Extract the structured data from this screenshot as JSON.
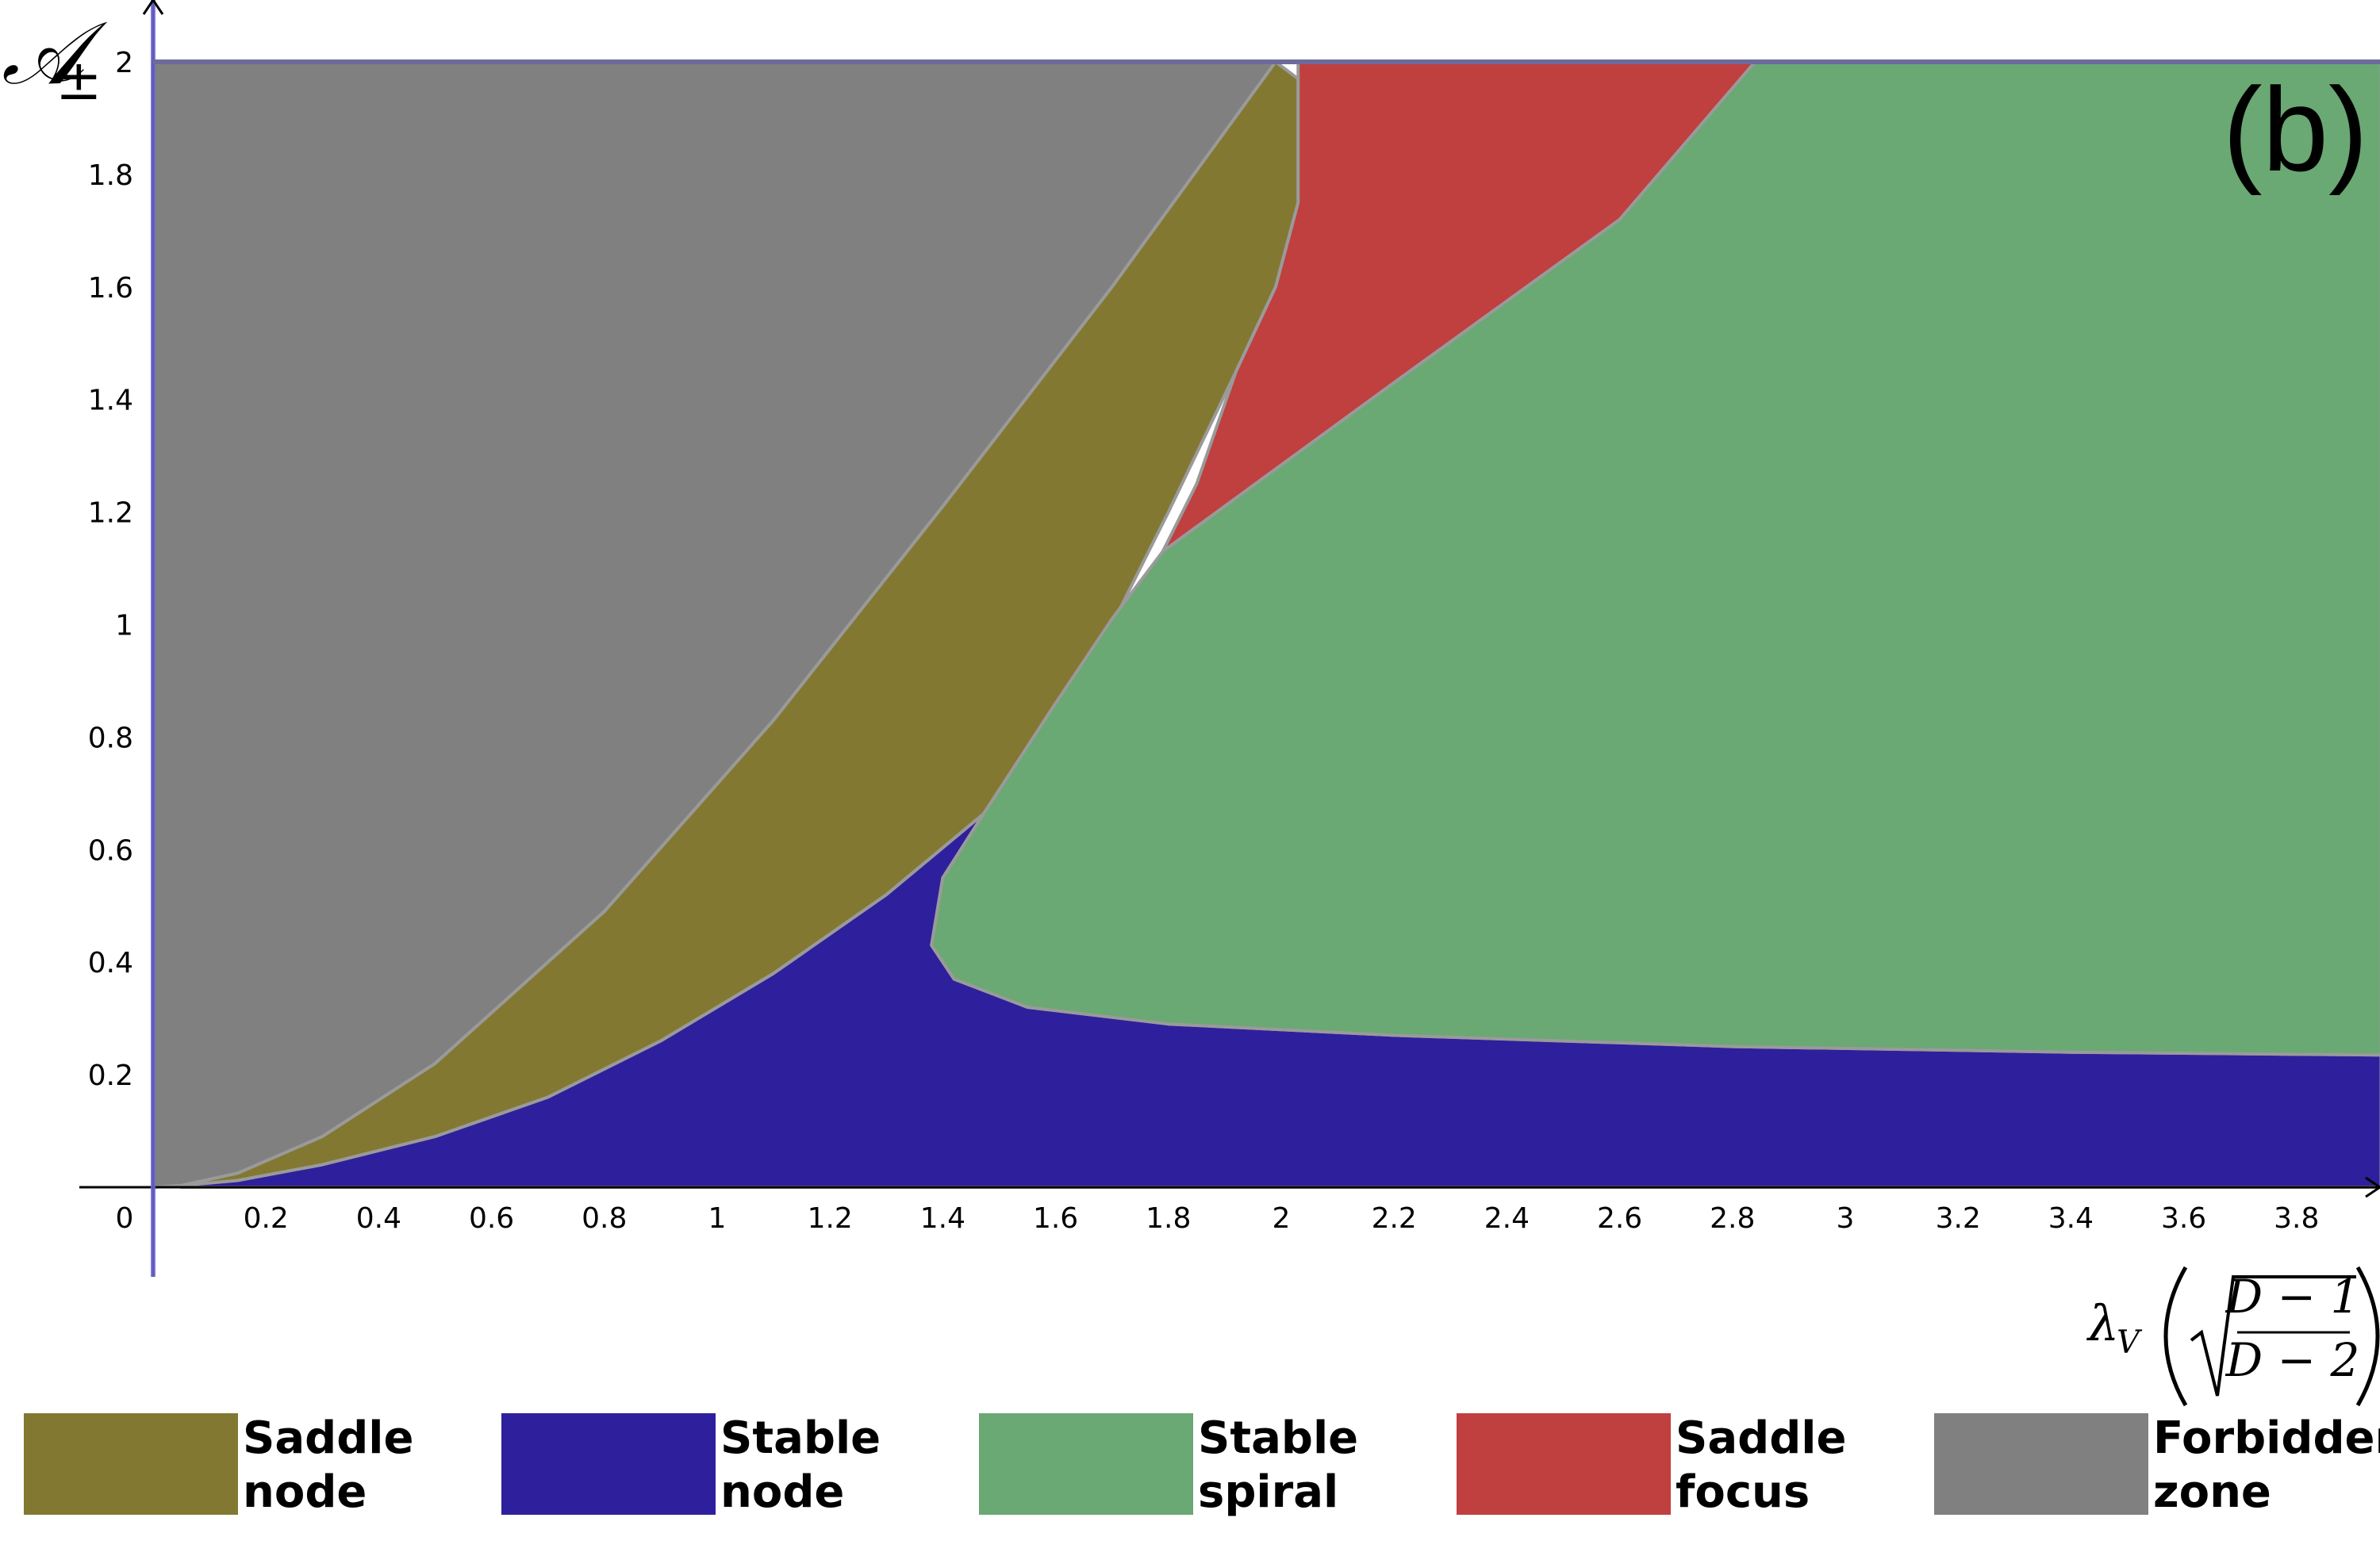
{
  "chart_data": {
    "type": "area",
    "panel_label": "(b)",
    "xlabel": {
      "prefix": "λ",
      "sub": "V",
      "frac_num": "D − 1",
      "frac_den": "D − 2"
    },
    "ylabel": {
      "symbol": "𝒜",
      "sub": "±"
    },
    "xlim": [
      -0.12,
      3.95
    ],
    "ylim": [
      0,
      2
    ],
    "x_ticks": [
      "0",
      "0.2",
      "0.4",
      "0.6",
      "0.8",
      "1",
      "1.2",
      "1.4",
      "1.6",
      "1.8",
      "2",
      "2.2",
      "2.4",
      "2.6",
      "2.8",
      "3",
      "3.2",
      "3.4",
      "3.6",
      "3.8"
    ],
    "y_ticks": [
      "0.2",
      "0.4",
      "0.6",
      "0.8",
      "1",
      "1.2",
      "1.4",
      "1.6",
      "1.8",
      "2"
    ],
    "legend_position": "bottom",
    "regions": [
      {
        "name": "forbidden",
        "color": "#808080",
        "points": [
          [
            0,
            0
          ],
          [
            0,
            2
          ],
          [
            1.99,
            2
          ],
          [
            1.7,
            1.6
          ],
          [
            1.4,
            1.21
          ],
          [
            1.1,
            0.83
          ],
          [
            0.8,
            0.49
          ],
          [
            0.5,
            0.22
          ],
          [
            0.3,
            0.09
          ],
          [
            0.15,
            0.025
          ],
          [
            0.05,
            0.003
          ],
          [
            0,
            0
          ]
        ]
      },
      {
        "name": "saddle-node",
        "color": "#837832",
        "points": [
          [
            0.05,
            0.003
          ],
          [
            0.15,
            0.025
          ],
          [
            0.3,
            0.09
          ],
          [
            0.5,
            0.22
          ],
          [
            0.8,
            0.49
          ],
          [
            1.1,
            0.83
          ],
          [
            1.4,
            1.21
          ],
          [
            1.7,
            1.6
          ],
          [
            1.99,
            2
          ],
          [
            2.03,
            1.97
          ],
          [
            2.03,
            1.75
          ],
          [
            1.99,
            1.6
          ],
          [
            1.92,
            1.45
          ],
          [
            1.8,
            1.2
          ],
          [
            1.7,
            1.0
          ],
          [
            1.6,
            0.86
          ],
          [
            1.48,
            0.67
          ],
          [
            1.3,
            0.52
          ],
          [
            1.1,
            0.38
          ],
          [
            0.9,
            0.26
          ],
          [
            0.7,
            0.16
          ],
          [
            0.5,
            0.09
          ],
          [
            0.3,
            0.04
          ],
          [
            0.15,
            0.012
          ],
          [
            0.05,
            0.003
          ]
        ]
      },
      {
        "name": "stable-node",
        "color": "#2e209c",
        "points": [
          [
            0.05,
            0
          ],
          [
            0.05,
            0.003
          ],
          [
            0.15,
            0.012
          ],
          [
            0.3,
            0.04
          ],
          [
            0.5,
            0.09
          ],
          [
            0.7,
            0.16
          ],
          [
            0.9,
            0.26
          ],
          [
            1.1,
            0.38
          ],
          [
            1.3,
            0.52
          ],
          [
            1.48,
            0.67
          ],
          [
            1.6,
            0.86
          ],
          [
            1.47,
            0.66
          ],
          [
            1.4,
            0.55
          ],
          [
            1.38,
            0.43
          ],
          [
            1.42,
            0.37
          ],
          [
            1.55,
            0.32
          ],
          [
            1.8,
            0.29
          ],
          [
            2.2,
            0.27
          ],
          [
            2.8,
            0.25
          ],
          [
            3.4,
            0.24
          ],
          [
            3.95,
            0.235
          ],
          [
            3.95,
            0
          ],
          [
            0.05,
            0
          ]
        ]
      },
      {
        "name": "stable-spiral",
        "color": "#6aa874",
        "points": [
          [
            1.6,
            0.86
          ],
          [
            1.7,
            1.01
          ],
          [
            1.79,
            1.13
          ],
          [
            2.2,
            1.43
          ],
          [
            2.6,
            1.72
          ],
          [
            2.84,
            2
          ],
          [
            3.95,
            2
          ],
          [
            3.95,
            0.235
          ],
          [
            3.4,
            0.24
          ],
          [
            2.8,
            0.25
          ],
          [
            2.2,
            0.27
          ],
          [
            1.8,
            0.29
          ],
          [
            1.55,
            0.32
          ],
          [
            1.42,
            0.37
          ],
          [
            1.38,
            0.43
          ],
          [
            1.4,
            0.55
          ],
          [
            1.47,
            0.66
          ],
          [
            1.6,
            0.86
          ]
        ]
      },
      {
        "name": "saddle-focus",
        "color": "#c03f3f",
        "points": [
          [
            2.03,
            2
          ],
          [
            2.84,
            2
          ],
          [
            2.6,
            1.72
          ],
          [
            2.2,
            1.43
          ],
          [
            1.79,
            1.13
          ],
          [
            1.85,
            1.25
          ],
          [
            1.92,
            1.45
          ],
          [
            1.99,
            1.6
          ],
          [
            2.03,
            1.75
          ],
          [
            2.03,
            2
          ]
        ]
      }
    ],
    "legend": [
      {
        "line1": "Saddle",
        "line2": "node",
        "color": "#837832"
      },
      {
        "line1": "Stable",
        "line2": "node",
        "color": "#2e209c"
      },
      {
        "line1": "Stable",
        "line2": "spiral",
        "color": "#6aa874"
      },
      {
        "line1": "Saddle",
        "line2": "focus",
        "color": "#c03f3f"
      },
      {
        "line1": "Forbidden",
        "line2": "zone",
        "color": "#808080"
      }
    ]
  }
}
